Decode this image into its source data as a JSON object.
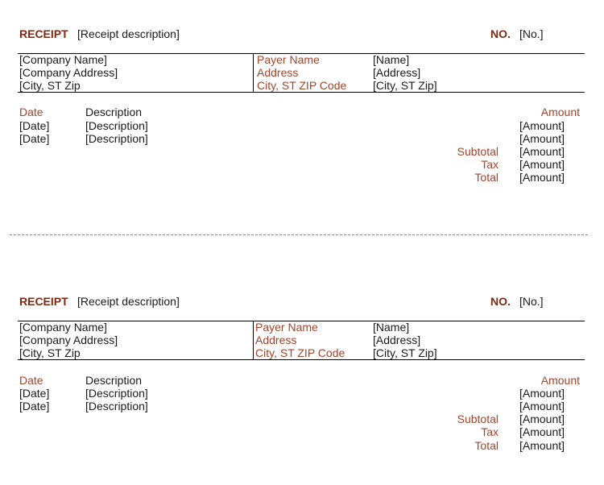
{
  "receipts": [
    {
      "title": "RECEIPT",
      "description": "[Receipt description]",
      "no_label": "NO.",
      "no_value": "[No.]",
      "company": {
        "name": "[Company Name]",
        "address": "[Company Address]",
        "city": "[City, ST  Zip"
      },
      "payer": {
        "name_label": "Payer Name",
        "address_label": "Address",
        "city_label": "City, ST ZIP Code",
        "name": "[Name]",
        "address": "[Address]",
        "city": "[City, ST  Zip]"
      },
      "items_header": {
        "date": "Date",
        "description": "Description",
        "amount": "Amount"
      },
      "items": [
        {
          "date": "[Date]",
          "description": "[Description]",
          "amount": "[Amount]"
        },
        {
          "date": "[Date]",
          "description": "[Description]",
          "amount": "[Amount]"
        }
      ],
      "totals": [
        {
          "label": "Subtotal",
          "amount": "[Amount]"
        },
        {
          "label": "Tax",
          "amount": "[Amount]"
        },
        {
          "label": "Total",
          "amount": "[Amount]"
        }
      ]
    },
    {
      "title": "RECEIPT",
      "description": "[Receipt description]",
      "no_label": "NO.",
      "no_value": "[No.]",
      "company": {
        "name": "[Company Name]",
        "address": "[Company Address]",
        "city": "[City, ST  Zip"
      },
      "payer": {
        "name_label": "Payer Name",
        "address_label": "Address",
        "city_label": "City, ST ZIP Code",
        "name": "[Name]",
        "address": "[Address]",
        "city": "[City, ST  Zip]"
      },
      "items_header": {
        "date": "Date",
        "description": "Description",
        "amount": "Amount"
      },
      "items": [
        {
          "date": "[Date]",
          "description": "[Description]",
          "amount": "[Amount]"
        },
        {
          "date": "[Date]",
          "description": "[Description]",
          "amount": "[Amount]"
        }
      ],
      "totals": [
        {
          "label": "Subtotal",
          "amount": "[Amount]"
        },
        {
          "label": "Tax",
          "amount": "[Amount]"
        },
        {
          "label": "Total",
          "amount": "[Amount]"
        }
      ]
    }
  ]
}
